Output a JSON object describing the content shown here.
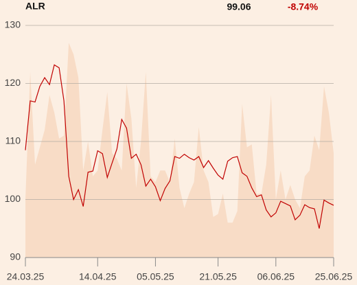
{
  "chart_data": {
    "type": "line",
    "title": "ALR",
    "price": "99.06",
    "change": "-8.74%",
    "change_color": "#c00000",
    "ylim": [
      90,
      130
    ],
    "yticks": [
      90,
      100,
      110,
      120,
      130
    ],
    "grid": true,
    "xlim": [
      0,
      64
    ],
    "xticks": [
      {
        "value": 0,
        "label": "24.03.25"
      },
      {
        "value": 15,
        "label": "14.04.25"
      },
      {
        "value": 27,
        "label": "05.05.25"
      },
      {
        "value": 40,
        "label": "21.05.25"
      },
      {
        "value": 52,
        "label": "06.06.25"
      },
      {
        "value": 64,
        "label": "25.06.25"
      }
    ],
    "series": [
      {
        "type": "area",
        "color": "#f8dcc6",
        "values": [
          100,
          122,
          106,
          109,
          112,
          118,
          115,
          110.5,
          111,
          127,
          125,
          121,
          105,
          110,
          104,
          105,
          112,
          118.5,
          108,
          107,
          105,
          120,
          114,
          102,
          110,
          122,
          104,
          103,
          105,
          105,
          103,
          110.5,
          102,
          98.5,
          101,
          103,
          112.5,
          105,
          103,
          97,
          97.5,
          101,
          96,
          96,
          98,
          116.5,
          109,
          109.5,
          101,
          101,
          106,
          118,
          100,
          105,
          100,
          102.5,
          100,
          98.5,
          104,
          105,
          111,
          108.5,
          119.5,
          115,
          108
        ]
      },
      {
        "type": "line",
        "color": "#c00000",
        "values": [
          108.5,
          117,
          116.8,
          119.5,
          121,
          119.8,
          123.2,
          122.7,
          117,
          104,
          100,
          101.7,
          98.8,
          104.7,
          104.9,
          108.4,
          107.9,
          103.8,
          106.3,
          108.7,
          113.8,
          112.3,
          107.1,
          107.8,
          106,
          102.3,
          103.5,
          102.2,
          99.8,
          101.9,
          103.2,
          107.4,
          107.1,
          107.8,
          107.2,
          106.8,
          107.4,
          105.5,
          106.7,
          105.4,
          104.2,
          103.5,
          106.6,
          107.2,
          107.4,
          104.6,
          104,
          102,
          100.5,
          100.8,
          98.2,
          97,
          97.7,
          99.7,
          99.3,
          98.9,
          96.5,
          97.3,
          99.1,
          98.6,
          98.4,
          95,
          99.9,
          99.4,
          99
        ]
      }
    ]
  }
}
